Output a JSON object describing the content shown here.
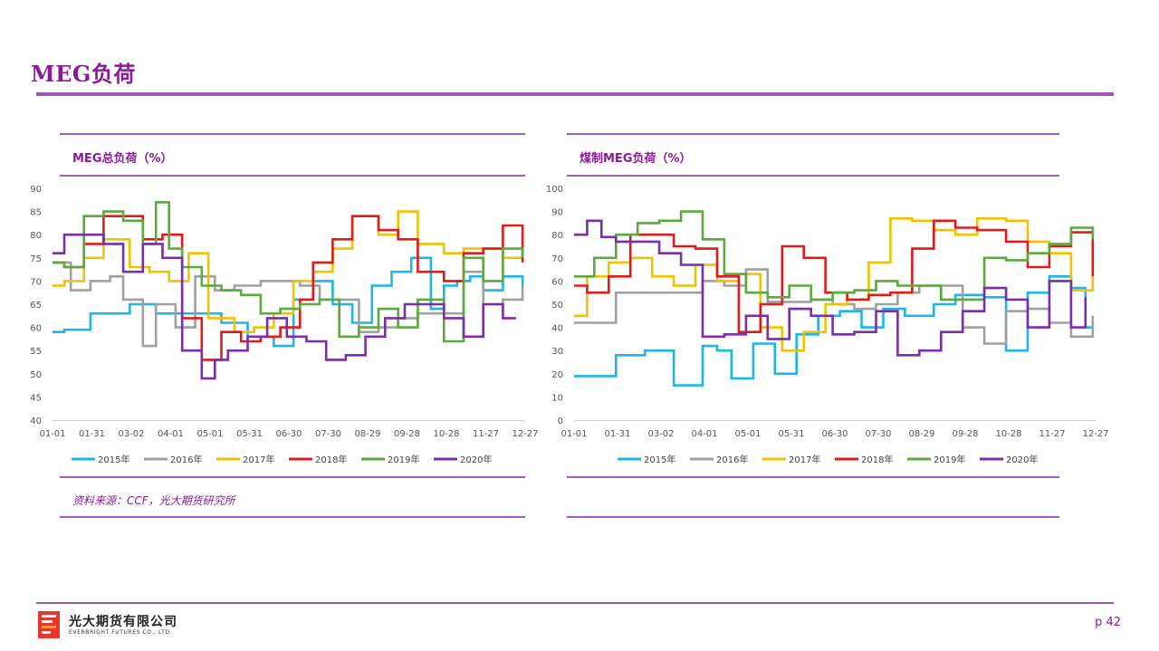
{
  "header": {
    "title": "MEG负荷"
  },
  "source_note": "资料来源：CCF，光大期货研究所",
  "footer": {
    "company_cn": "光大期货有限公司",
    "company_en": "EVERBRIGHT FUTURES CO., LTD.",
    "page": "p 42"
  },
  "chart_data": [
    {
      "type": "line",
      "title": "MEG总负荷（%）",
      "xlabel": "",
      "ylabel": "",
      "ylim": [
        40,
        90
      ],
      "yticks": [
        40,
        45,
        50,
        55,
        60,
        65,
        70,
        75,
        80,
        85,
        90
      ],
      "x_tick_labels": [
        "01-01",
        "01-31",
        "03-02",
        "04-01",
        "05-01",
        "05-31",
        "06-30",
        "07-30",
        "08-29",
        "09-28",
        "10-28",
        "11-27",
        "12-27"
      ],
      "legend_position": "bottom",
      "grid": false,
      "series": [
        {
          "name": "2015年",
          "color": "#1fb5e6",
          "x": [
            1,
            10,
            30,
            60,
            80,
            100,
            130,
            150,
            170,
            185,
            200,
            215,
            230,
            245,
            260,
            275,
            290,
            300,
            310,
            320,
            330,
            345,
            360
          ],
          "values": [
            59,
            59.5,
            63,
            65,
            63,
            63,
            61,
            58,
            56,
            66,
            70,
            65,
            61,
            69,
            72,
            75,
            64,
            69,
            70,
            71,
            68,
            71,
            69
          ]
        },
        {
          "name": "2016年",
          "color": "#a0a0a0",
          "x": [
            1,
            15,
            30,
            45,
            55,
            70,
            80,
            95,
            110,
            125,
            140,
            160,
            175,
            190,
            205,
            220,
            235,
            250,
            265,
            280,
            300,
            315,
            330,
            345,
            360
          ],
          "values": [
            74,
            68,
            70,
            71,
            66,
            56,
            65,
            60,
            71,
            68,
            69,
            70,
            70,
            69,
            66,
            66,
            59,
            60,
            62,
            63,
            63,
            72,
            65,
            66,
            69
          ]
        },
        {
          "name": "2017年",
          "color": "#f2c200",
          "x": [
            1,
            10,
            25,
            40,
            60,
            75,
            90,
            105,
            120,
            140,
            155,
            170,
            185,
            200,
            215,
            230,
            250,
            265,
            280,
            300,
            315,
            330,
            345,
            360
          ],
          "values": [
            69,
            70,
            75,
            79,
            73,
            72,
            70,
            76,
            62,
            59,
            60,
            63,
            70,
            72,
            77,
            84,
            80,
            85,
            78,
            76,
            77,
            77,
            75,
            76
          ]
        },
        {
          "name": "2018年",
          "color": "#e11a1a",
          "x": [
            1,
            10,
            25,
            40,
            55,
            70,
            85,
            100,
            115,
            130,
            145,
            160,
            175,
            190,
            200,
            215,
            230,
            250,
            265,
            280,
            300,
            315,
            330,
            345,
            360
          ],
          "values": [
            74,
            73,
            78,
            84,
            84,
            79,
            80,
            62,
            53,
            59,
            57,
            58,
            60,
            66,
            74,
            79,
            84,
            81,
            79,
            72,
            70,
            76,
            77,
            82,
            74
          ]
        },
        {
          "name": "2019年",
          "color": "#5aaa3c",
          "x": [
            1,
            10,
            25,
            40,
            55,
            70,
            80,
            90,
            100,
            115,
            130,
            145,
            160,
            175,
            190,
            205,
            220,
            235,
            250,
            265,
            280,
            300,
            315,
            330,
            345,
            360
          ],
          "values": [
            74,
            73,
            84,
            85,
            83,
            78,
            87,
            77,
            73,
            69,
            68,
            67,
            63,
            64,
            65,
            66,
            58,
            60,
            64,
            60,
            66,
            57,
            75,
            70,
            77,
            75
          ]
        },
        {
          "name": "2020年",
          "color": "#7b2fa5",
          "x": [
            1,
            10,
            25,
            40,
            55,
            70,
            85,
            100,
            115,
            125,
            135,
            150,
            165,
            180,
            195,
            210,
            225,
            240,
            255,
            270,
            285,
            300,
            315,
            330,
            345,
            355
          ],
          "values": [
            76,
            80,
            80,
            78,
            72,
            78,
            75,
            55,
            49,
            53,
            55,
            58,
            62,
            58,
            57,
            53,
            54,
            58,
            62,
            65,
            65,
            62,
            58,
            65,
            62,
            62
          ]
        }
      ]
    },
    {
      "type": "line",
      "title": "煤制MEG负荷（%）",
      "xlabel": "",
      "ylabel": "",
      "ylim": [
        0,
        100
      ],
      "yticks": [
        0,
        10,
        20,
        30,
        40,
        50,
        60,
        70,
        80,
        90,
        100
      ],
      "x_tick_labels": [
        "01-01",
        "01-31",
        "03-02",
        "04-01",
        "05-01",
        "05-31",
        "06-30",
        "07-30",
        "08-29",
        "09-28",
        "10-28",
        "11-27",
        "12-27"
      ],
      "legend_position": "bottom",
      "grid": false,
      "series": [
        {
          "name": "2015年",
          "color": "#1fb5e6",
          "x": [
            1,
            15,
            30,
            50,
            70,
            80,
            90,
            100,
            110,
            125,
            140,
            155,
            170,
            185,
            200,
            215,
            230,
            250,
            265,
            285,
            300,
            315,
            330,
            345,
            355,
            360
          ],
          "values": [
            19,
            19,
            28,
            30,
            15,
            15,
            32,
            30,
            18,
            33,
            20,
            37,
            45,
            47,
            40,
            48,
            45,
            50,
            54,
            53,
            30,
            55,
            62,
            57,
            40,
            42
          ]
        },
        {
          "name": "2016年",
          "color": "#a0a0a0",
          "x": [
            1,
            15,
            30,
            50,
            75,
            90,
            105,
            120,
            135,
            150,
            165,
            180,
            195,
            210,
            225,
            240,
            255,
            270,
            285,
            300,
            315,
            330,
            345,
            360
          ],
          "values": [
            42,
            42,
            55,
            55,
            55,
            60,
            58,
            65,
            51,
            51,
            52,
            50,
            48,
            50,
            55,
            58,
            58,
            40,
            33,
            47,
            48,
            42,
            36,
            45
          ]
        },
        {
          "name": "2017年",
          "color": "#f2c200",
          "x": [
            1,
            10,
            25,
            40,
            55,
            70,
            85,
            100,
            115,
            130,
            145,
            160,
            175,
            190,
            205,
            220,
            235,
            250,
            265,
            280,
            300,
            315,
            330,
            345,
            360
          ],
          "values": [
            45,
            62,
            68,
            70,
            62,
            58,
            67,
            60,
            63,
            40,
            30,
            38,
            50,
            52,
            68,
            87,
            86,
            82,
            80,
            87,
            86,
            77,
            72,
            56,
            68
          ]
        },
        {
          "name": "2018年",
          "color": "#e11a1a",
          "x": [
            1,
            10,
            25,
            40,
            55,
            70,
            85,
            100,
            115,
            130,
            145,
            160,
            175,
            190,
            205,
            220,
            235,
            250,
            265,
            280,
            300,
            315,
            330,
            345,
            360
          ],
          "values": [
            58,
            55,
            62,
            80,
            80,
            75,
            74,
            62,
            38,
            50,
            75,
            70,
            55,
            52,
            54,
            55,
            74,
            86,
            83,
            82,
            77,
            66,
            75,
            81,
            62
          ]
        },
        {
          "name": "2019年",
          "color": "#5aaa3c",
          "x": [
            1,
            15,
            30,
            45,
            60,
            75,
            90,
            105,
            120,
            135,
            150,
            165,
            180,
            195,
            210,
            225,
            240,
            255,
            270,
            285,
            300,
            315,
            330,
            345,
            360
          ],
          "values": [
            62,
            70,
            80,
            85,
            86,
            90,
            78,
            63,
            55,
            53,
            58,
            52,
            55,
            56,
            60,
            58,
            58,
            52,
            52,
            70,
            69,
            72,
            76,
            83,
            78
          ]
        },
        {
          "name": "2020年",
          "color": "#7b2fa5",
          "x": [
            1,
            10,
            20,
            30,
            45,
            60,
            75,
            90,
            105,
            120,
            135,
            150,
            165,
            180,
            195,
            210,
            225,
            240,
            255,
            270,
            285,
            300,
            315,
            330,
            345,
            355
          ],
          "values": [
            80,
            86,
            79,
            77,
            77,
            72,
            67,
            36,
            37,
            45,
            35,
            48,
            45,
            37,
            38,
            47,
            28,
            30,
            38,
            47,
            57,
            52,
            40,
            60,
            40,
            53
          ]
        }
      ]
    }
  ]
}
